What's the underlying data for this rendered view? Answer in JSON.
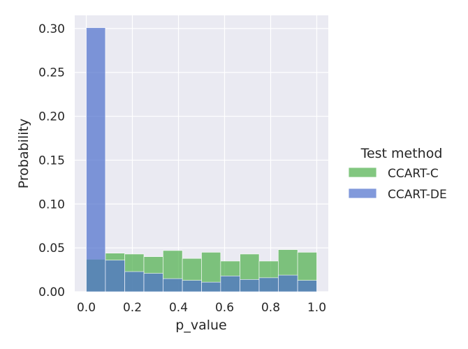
{
  "chart_data": {
    "type": "bar",
    "xlabel": "p_value",
    "ylabel": "Probability",
    "xlim": [
      -0.05,
      1.05
    ],
    "ylim": [
      0,
      0.315
    ],
    "x_ticks": [
      "0.0",
      "0.2",
      "0.4",
      "0.6",
      "0.8",
      "1.0"
    ],
    "y_ticks": [
      "0.00",
      "0.05",
      "0.10",
      "0.15",
      "0.20",
      "0.25",
      "0.30"
    ],
    "grid": true,
    "bin_edges": [
      0.0,
      0.083,
      0.167,
      0.25,
      0.333,
      0.417,
      0.5,
      0.583,
      0.667,
      0.75,
      0.833,
      0.917,
      1.0
    ],
    "legend": {
      "title": "Test method",
      "position": "right"
    },
    "series": [
      {
        "name": "CCART-C",
        "color": "#4daf4a",
        "values": [
          0.037,
          0.044,
          0.043,
          0.04,
          0.047,
          0.038,
          0.045,
          0.035,
          0.043,
          0.035,
          0.048,
          0.045
        ]
      },
      {
        "name": "CCART-DE",
        "color": "#4c6ecc",
        "values": [
          0.301,
          0.036,
          0.023,
          0.021,
          0.015,
          0.013,
          0.011,
          0.018,
          0.014,
          0.016,
          0.019,
          0.013
        ]
      }
    ]
  }
}
